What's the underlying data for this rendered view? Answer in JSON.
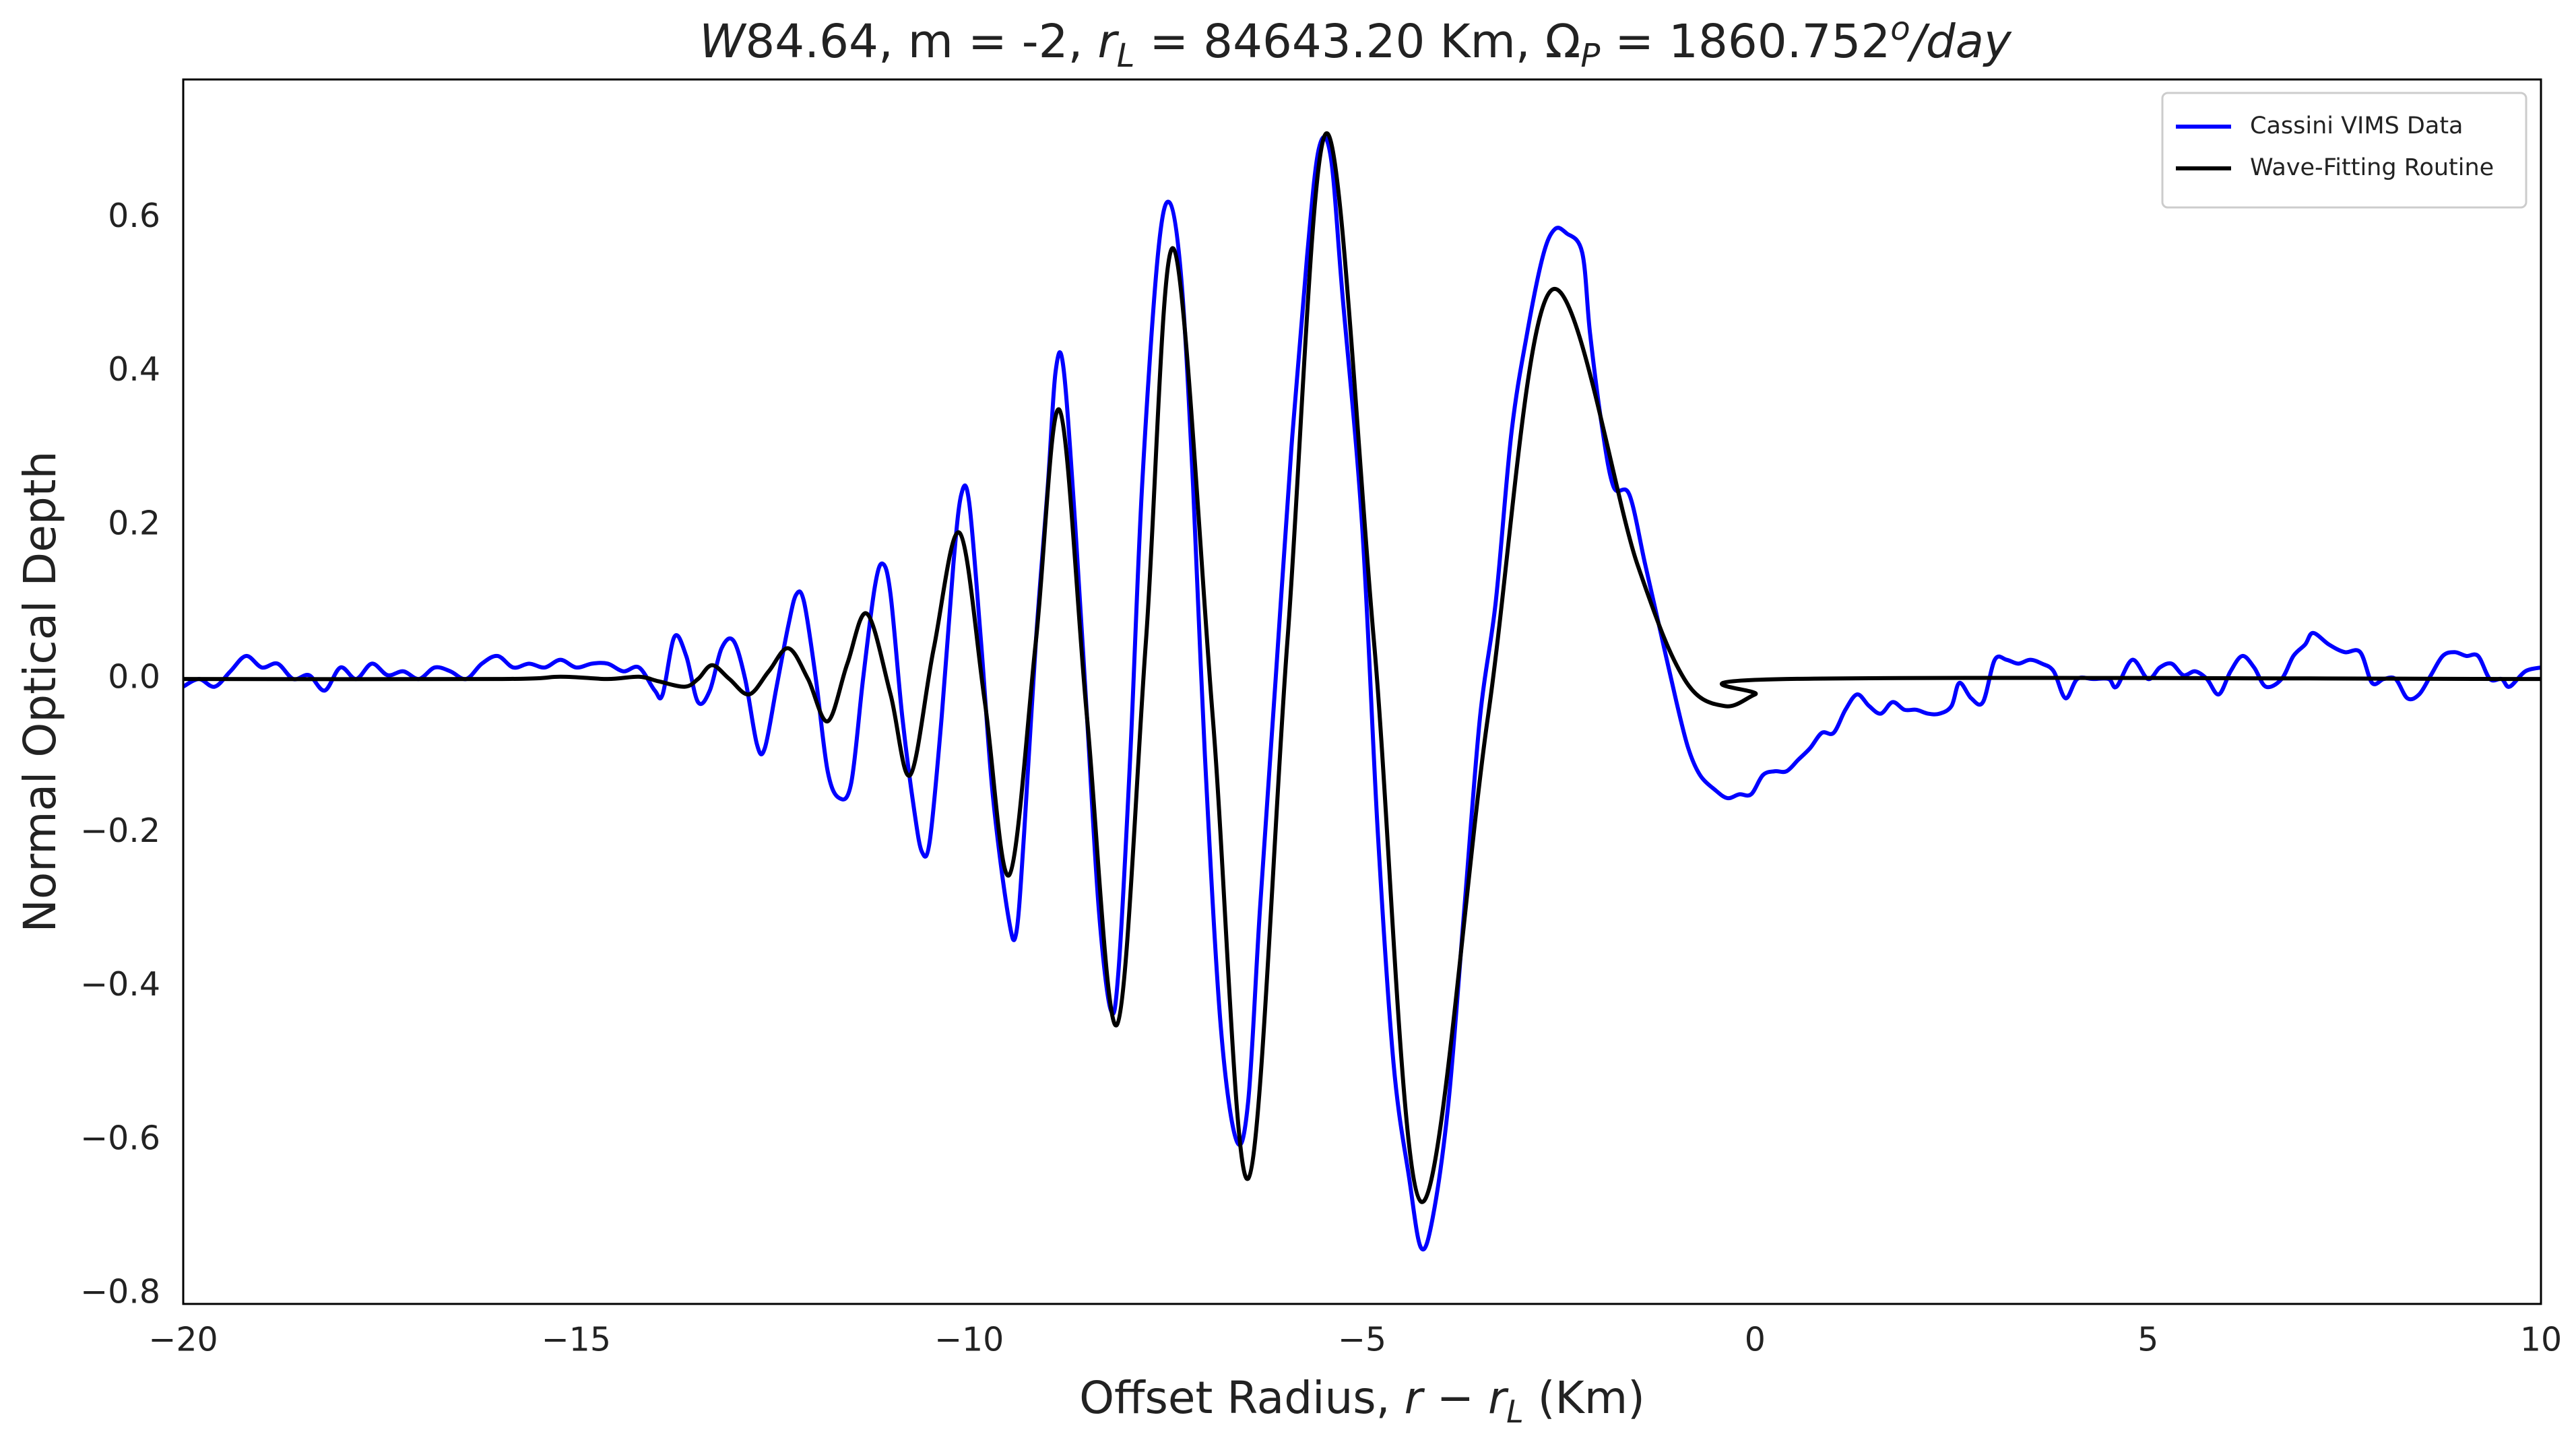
{
  "chart_data": {
    "type": "line",
    "title": [
      "W",
      "84.64, m = -2, ",
      "r",
      "L",
      " = 84643.20 Km, Ω",
      "P",
      " = 1860.752",
      "o",
      "/day"
    ],
    "x_label": [
      "Offset Radius, ",
      "r − r",
      "L",
      " (Km)"
    ],
    "y_label": "Normal Optical Depth",
    "xlim": [
      -20,
      10
    ],
    "ylim": [
      -0.813,
      0.78
    ],
    "xticks": [
      {
        "value": -20,
        "label": "−20"
      },
      {
        "value": -15,
        "label": "−15"
      },
      {
        "value": -10,
        "label": "−10"
      },
      {
        "value": -5,
        "label": "−5"
      },
      0,
      5,
      10
    ],
    "yticks": [
      {
        "value": -0.8,
        "label": "−0.8"
      },
      {
        "value": -0.6,
        "label": "−0.6"
      },
      {
        "value": -0.4,
        "label": "−0.4"
      },
      {
        "value": -0.2,
        "label": "−0.2"
      },
      {
        "value": 0,
        "label": "0.0"
      },
      0.2,
      0.4,
      0.6
    ],
    "grid": false,
    "legend": "upper right",
    "series": [
      {
        "name": "Cassini VIMS Data",
        "color": "#0000ff",
        "x": [
          -20,
          -19.8,
          -19.6,
          -19.4,
          -19.2,
          -19,
          -18.8,
          -18.6,
          -18.4,
          -18.2,
          -18,
          -17.8,
          -17.6,
          -17.4,
          -17.2,
          -17,
          -16.8,
          -16.6,
          -16.4,
          -16.2,
          -16,
          -15.8,
          -15.6,
          -15.4,
          -15.2,
          -15,
          -14.8,
          -14.6,
          -14.4,
          -14.2,
          -14,
          -13.9,
          -13.75,
          -13.6,
          -13.45,
          -13.3,
          -13.15,
          -13,
          -12.85,
          -12.7,
          -12.6,
          -12.45,
          -12.3,
          -12.2,
          -12.1,
          -11.95,
          -11.8,
          -11.65,
          -11.5,
          -11.35,
          -11.2,
          -11.1,
          -11,
          -10.85,
          -10.7,
          -10.6,
          -10.5,
          -10.35,
          -10.2,
          -10.1,
          -10,
          -9.85,
          -9.7,
          -9.5,
          -9.4,
          -9.3,
          -9.15,
          -9,
          -8.9,
          -8.8,
          -8.65,
          -8.5,
          -8.35,
          -8.2,
          -8.1,
          -7.95,
          -7.8,
          -7.6,
          -7.45,
          -7.3,
          -7.15,
          -7,
          -6.8,
          -6.6,
          -6.45,
          -6.3,
          -6.1,
          -5.9,
          -5.7,
          -5.55,
          -5.4,
          -5.25,
          -5,
          -4.8,
          -4.6,
          -4.4,
          -4.25,
          -4.1,
          -3.9,
          -3.7,
          -3.5,
          -3.3,
          -3.1,
          -2.9,
          -2.7,
          -2.55,
          -2.4,
          -2.2,
          -2.1,
          -1.95,
          -1.8,
          -1.6,
          -1.4,
          -1.2,
          -1,
          -0.85,
          -0.7,
          -0.5,
          -0.35,
          -0.2,
          -0.05,
          0.1,
          0.25,
          0.4,
          0.55,
          0.7,
          0.85,
          1,
          1.15,
          1.3,
          1.45,
          1.6,
          1.75,
          1.9,
          2.05,
          2.2,
          2.35,
          2.5,
          2.6,
          2.75,
          2.9,
          3.05,
          3.2,
          3.35,
          3.5,
          3.65,
          3.8,
          3.95,
          4.1,
          4.3,
          4.5,
          4.6,
          4.8,
          5,
          5.15,
          5.3,
          5.45,
          5.6,
          5.75,
          5.9,
          6.05,
          6.2,
          6.35,
          6.5,
          6.7,
          6.85,
          7,
          7.1,
          7.3,
          7.5,
          7.7,
          7.85,
          8,
          8.15,
          8.3,
          8.45,
          8.6,
          8.75,
          8.9,
          9.05,
          9.2,
          9.35,
          9.5,
          9.6,
          9.8,
          10
        ],
        "values": [
          -0.01,
          0,
          -0.01,
          0.01,
          0.03,
          0.015,
          0.02,
          0,
          0.005,
          -0.015,
          0.015,
          0,
          0.02,
          0.005,
          0.01,
          0,
          0.015,
          0.01,
          0,
          0.02,
          0.03,
          0.015,
          0.02,
          0.015,
          0.025,
          0.015,
          0.02,
          0.02,
          0.01,
          0.015,
          -0.015,
          -0.02,
          0.055,
          0.03,
          -0.03,
          -0.015,
          0.04,
          0.05,
          0,
          -0.085,
          -0.09,
          -0.01,
          0.07,
          0.11,
          0.1,
          0,
          -0.12,
          -0.155,
          -0.135,
          0,
          0.12,
          0.15,
          0.11,
          -0.05,
          -0.17,
          -0.225,
          -0.21,
          -0.05,
          0.15,
          0.24,
          0.23,
          0.05,
          -0.15,
          -0.31,
          -0.33,
          -0.2,
          0.05,
          0.25,
          0.4,
          0.405,
          0.2,
          -0.05,
          -0.3,
          -0.43,
          -0.38,
          -0.1,
          0.25,
          0.55,
          0.62,
          0.52,
          0.25,
          -0.1,
          -0.45,
          -0.6,
          -0.55,
          -0.3,
          0,
          0.3,
          0.55,
          0.69,
          0.68,
          0.5,
          0.2,
          -0.2,
          -0.5,
          -0.65,
          -0.74,
          -0.7,
          -0.55,
          -0.3,
          -0.05,
          0.1,
          0.32,
          0.45,
          0.55,
          0.585,
          0.58,
          0.555,
          0.45,
          0.33,
          0.25,
          0.24,
          0.15,
          0.06,
          -0.03,
          -0.09,
          -0.125,
          -0.145,
          -0.155,
          -0.15,
          -0.15,
          -0.125,
          -0.12,
          -0.12,
          -0.105,
          -0.09,
          -0.07,
          -0.07,
          -0.04,
          -0.02,
          -0.035,
          -0.045,
          -0.03,
          -0.04,
          -0.04,
          -0.045,
          -0.045,
          -0.035,
          -0.005,
          -0.025,
          -0.03,
          0.025,
          0.025,
          0.02,
          0.025,
          0.02,
          0.01,
          -0.025,
          0,
          0,
          0,
          -0.01,
          0.025,
          0,
          0.015,
          0.02,
          0.005,
          0.01,
          0,
          -0.02,
          0.01,
          0.03,
          0.015,
          -0.01,
          0,
          0.03,
          0.045,
          0.06,
          0.045,
          0.035,
          0.035,
          -0.005,
          0,
          0,
          -0.025,
          -0.02,
          0.005,
          0.03,
          0.035,
          0.03,
          0.03,
          0,
          0,
          -0.01,
          0.01,
          0.015
        ]
      },
      {
        "name": "Wave-Fitting Routine",
        "color": "#000000",
        "x": [
          -20,
          -16,
          -15.2,
          -14.6,
          -14.2,
          -13.95,
          -13.62,
          -13.45,
          -13.27,
          -13.05,
          -12.8,
          -12.55,
          -12.3,
          -12.05,
          -11.8,
          -11.55,
          -11.3,
          -11,
          -10.75,
          -10.45,
          -10.12,
          -9.8,
          -9.49,
          -9.15,
          -8.85,
          -8.5,
          -8.12,
          -7.75,
          -7.4,
          -6.9,
          -6.45,
          -5.95,
          -5.45,
          -4.85,
          -4.25,
          -3.4,
          -2.6,
          -1.5,
          -0.9,
          -0.4,
          0,
          0.4,
          10
        ],
        "values": [
          0,
          0,
          0.003,
          0,
          0.003,
          -0.003,
          -0.01,
          0,
          0.018,
          0,
          -0.02,
          0.01,
          0.04,
          0,
          -0.055,
          0.02,
          0.085,
          -0.02,
          -0.125,
          0.04,
          0.19,
          -0.03,
          -0.255,
          0.05,
          0.35,
          -0.05,
          -0.45,
          0.05,
          0.56,
          -0.05,
          -0.65,
          0.05,
          0.71,
          0.05,
          -0.68,
          -0.05,
          0.505,
          0.15,
          0,
          -0.035,
          -0.02,
          0,
          0
        ]
      }
    ]
  }
}
